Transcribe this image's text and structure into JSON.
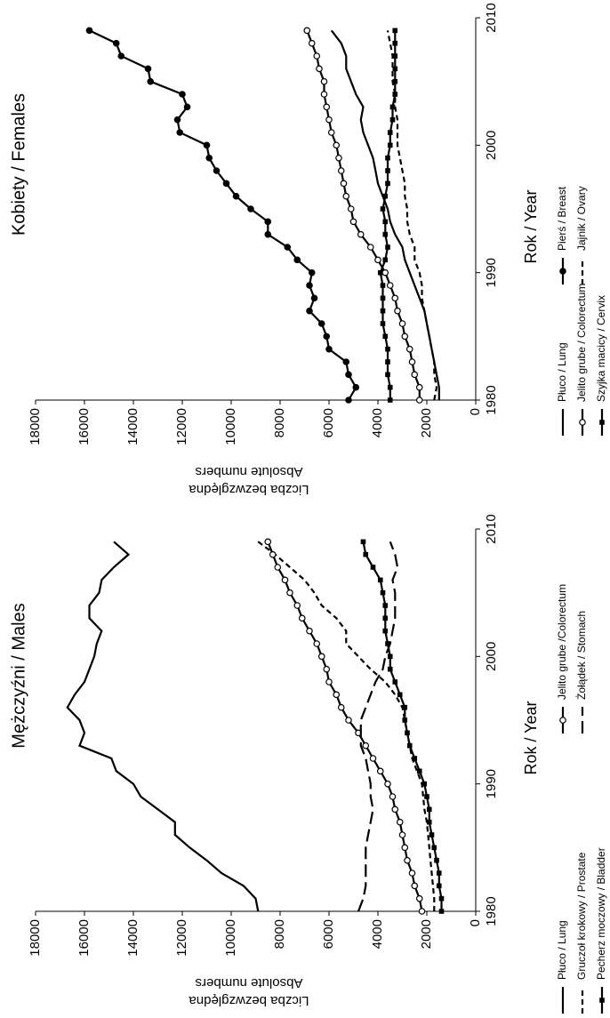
{
  "chart_data": [
    {
      "type": "line",
      "title": "Kobiety / Females",
      "x_label": "Rok / Year",
      "y_label": [
        "Liczba bezwzględna",
        "Absolute numbers"
      ],
      "x": [
        1980,
        1981,
        1982,
        1983,
        1984,
        1985,
        1986,
        1987,
        1988,
        1989,
        1990,
        1991,
        1992,
        1993,
        1994,
        1995,
        1996,
        1997,
        1998,
        1999,
        2000,
        2001,
        2002,
        2003,
        2004,
        2005,
        2006,
        2007,
        2008,
        2009
      ],
      "xlim": [
        1980,
        2010
      ],
      "xticks": [
        1980,
        1990,
        2000,
        2010
      ],
      "ylim": [
        0,
        18000
      ],
      "yticks": [
        0,
        2000,
        4000,
        6000,
        8000,
        10000,
        12000,
        14000,
        16000,
        18000
      ],
      "series": [
        {
          "name": "Płuco / Lung",
          "color": "#000000",
          "style": "solid",
          "marker": "none",
          "values": [
            1500,
            1500,
            1600,
            1700,
            1800,
            1900,
            2000,
            2100,
            2300,
            2500,
            2700,
            2900,
            3000,
            3300,
            3500,
            3600,
            3800,
            4000,
            4100,
            4200,
            4400,
            4600,
            4700,
            4600,
            4900,
            5100,
            5300,
            5300,
            5500,
            5900
          ]
        },
        {
          "name": "Jelito grube / Colorectum",
          "color": "#000000",
          "style": "solid",
          "marker": "circle-open",
          "values": [
            2300,
            2300,
            2500,
            2600,
            2700,
            2900,
            3000,
            3200,
            3300,
            3500,
            3700,
            4000,
            4300,
            4700,
            5000,
            5100,
            5300,
            5400,
            5500,
            5600,
            5700,
            5900,
            6000,
            6100,
            6200,
            6200,
            6400,
            6500,
            6700,
            6900
          ]
        },
        {
          "name": "Szyjka macicy / Cervix",
          "color": "#000000",
          "style": "solid",
          "marker": "square",
          "values": [
            3500,
            3500,
            3600,
            3600,
            3600,
            3700,
            3800,
            3800,
            3800,
            3800,
            3900,
            3700,
            3600,
            3700,
            3700,
            3800,
            3700,
            3600,
            3600,
            3600,
            3500,
            3500,
            3400,
            3400,
            3300,
            3300,
            3300,
            3300,
            3300,
            3300
          ]
        },
        {
          "name": "Pierś / Breast",
          "color": "#000000",
          "style": "solid",
          "marker": "circle-filled",
          "values": [
            5200,
            4900,
            5200,
            5300,
            6000,
            6100,
            6300,
            6800,
            6600,
            6800,
            6700,
            7300,
            7700,
            8500,
            8500,
            9200,
            9800,
            10200,
            10600,
            10900,
            11000,
            12100,
            12200,
            11800,
            12000,
            13300,
            13400,
            14500,
            14700,
            15800
          ]
        },
        {
          "name": "Jajnik / Ovary",
          "color": "#000000",
          "style": "dash",
          "marker": "none",
          "values": [
            1700,
            1600,
            1700,
            1700,
            1800,
            1900,
            2000,
            2100,
            2200,
            2200,
            2300,
            2500,
            2500,
            2700,
            2800,
            2800,
            2900,
            2900,
            3000,
            3100,
            3200,
            3200,
            3200,
            3300,
            3300,
            3400,
            3400,
            3400,
            3500,
            3600
          ]
        }
      ]
    },
    {
      "type": "line",
      "title": "Mężczyźni / Males",
      "x_label": "Rok / Year",
      "y_label": [
        "Liczba bezwzględna",
        "Absolute numbers"
      ],
      "x": [
        1980,
        1981,
        1982,
        1983,
        1984,
        1985,
        1986,
        1987,
        1988,
        1989,
        1990,
        1991,
        1992,
        1993,
        1994,
        1995,
        1996,
        1997,
        1998,
        1999,
        2000,
        2001,
        2002,
        2003,
        2004,
        2005,
        2006,
        2007,
        2008,
        2009
      ],
      "xlim": [
        1980,
        2010
      ],
      "xticks": [
        1980,
        1990,
        2000,
        2010
      ],
      "ylim": [
        0,
        18000
      ],
      "yticks": [
        0,
        2000,
        4000,
        6000,
        8000,
        10000,
        12000,
        14000,
        16000,
        18000
      ],
      "series": [
        {
          "name": "Płuco / Lung",
          "color": "#000000",
          "style": "solid",
          "marker": "none",
          "values": [
            8900,
            9000,
            9500,
            10400,
            11000,
            11700,
            12300,
            12300,
            13000,
            13700,
            14000,
            14700,
            14900,
            16200,
            16000,
            16200,
            16700,
            16400,
            16000,
            15800,
            15600,
            15500,
            15300,
            15800,
            15800,
            15400,
            15300,
            14800,
            14200,
            14800
          ]
        },
        {
          "name": "Gruczoł krokowy / Prostate",
          "color": "#000000",
          "style": "dash",
          "marker": "none",
          "values": [
            1700,
            1700,
            1750,
            1800,
            1850,
            1900,
            1950,
            2000,
            2100,
            2150,
            2200,
            2400,
            2600,
            2700,
            2800,
            2900,
            3000,
            3300,
            3700,
            4300,
            4800,
            5300,
            5300,
            5700,
            6300,
            6600,
            7000,
            7600,
            8200,
            8900
          ]
        },
        {
          "name": "Pecherz moczowy / Bladder",
          "color": "#000000",
          "style": "solid",
          "marker": "square",
          "values": [
            1400,
            1400,
            1500,
            1500,
            1600,
            1700,
            1800,
            1900,
            1900,
            2000,
            2100,
            2300,
            2500,
            2700,
            2800,
            2900,
            2900,
            3100,
            3300,
            3500,
            3500,
            3600,
            3700,
            3700,
            3700,
            3800,
            3900,
            4200,
            4500,
            4600
          ]
        },
        {
          "name": "Jelito grube /Colorectum",
          "color": "#000000",
          "style": "solid",
          "marker": "circle-open",
          "values": [
            2200,
            2300,
            2500,
            2600,
            2800,
            2900,
            3000,
            3100,
            3300,
            3400,
            3600,
            3900,
            4200,
            4500,
            4800,
            5200,
            5500,
            5700,
            6000,
            6100,
            6300,
            6500,
            6800,
            7100,
            7300,
            7600,
            7800,
            8100,
            8300,
            8500
          ]
        },
        {
          "name": "Żołądek / Stomach",
          "color": "#000000",
          "style": "longdash",
          "marker": "none",
          "values": [
            4800,
            4600,
            4500,
            4500,
            4500,
            4500,
            4400,
            4300,
            4200,
            4300,
            4300,
            4400,
            4500,
            4700,
            4700,
            4700,
            4500,
            4300,
            4100,
            3800,
            3700,
            3500,
            3400,
            3300,
            3300,
            3300,
            3400,
            3200,
            3300,
            3500
          ]
        }
      ]
    }
  ]
}
